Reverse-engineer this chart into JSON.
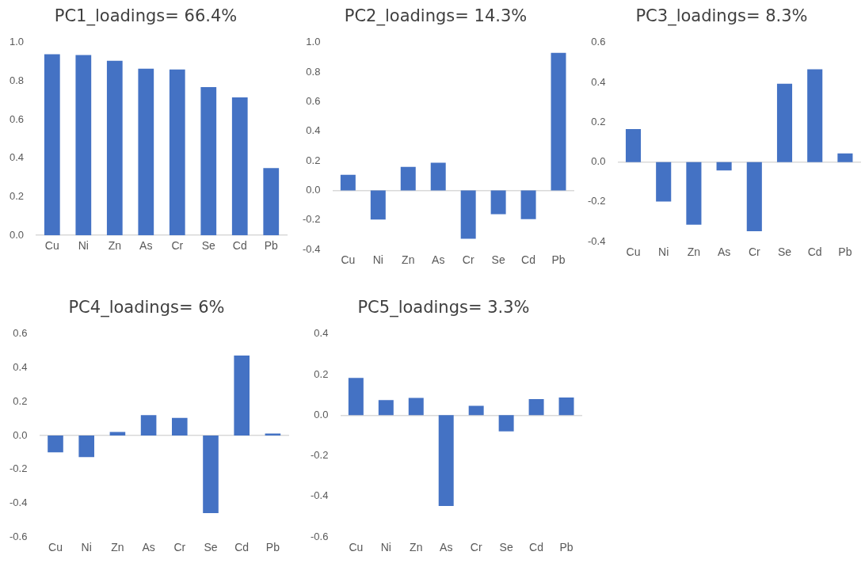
{
  "chart_data": [
    {
      "type": "bar",
      "title": "PC1_loadings= 66.4%",
      "categories": [
        "Cu",
        "Ni",
        "Zn",
        "As",
        "Cr",
        "Se",
        "Cd",
        "Pb"
      ],
      "values": [
        0.94,
        0.936,
        0.906,
        0.865,
        0.861,
        0.769,
        0.716,
        0.349
      ],
      "color": "#4472c4",
      "ylim": [
        0,
        1
      ],
      "yticks": [
        {
          "value": 0,
          "label": "0.0"
        },
        {
          "value": 0.2,
          "label": "0.2"
        },
        {
          "value": 0.4,
          "label": "0.4"
        },
        {
          "value": 0.6,
          "label": "0.6"
        },
        {
          "value": 0.8,
          "label": "0.8"
        },
        {
          "value": 1,
          "label": "1.0"
        }
      ],
      "legend": false
    },
    {
      "type": "bar",
      "title": "PC2_loadings= 14.3%",
      "categories": [
        "Cu",
        "Ni",
        "Zn",
        "As",
        "Cr",
        "Se",
        "Cd",
        "Pb"
      ],
      "values": [
        0.106,
        -0.197,
        0.159,
        0.187,
        -0.327,
        -0.161,
        -0.194,
        0.931
      ],
      "color": "#4472c4",
      "ylim": [
        -0.4,
        1
      ],
      "yticks": [
        {
          "value": -0.4,
          "label": "-0.4"
        },
        {
          "value": -0.2,
          "label": "-0.2"
        },
        {
          "value": 0,
          "label": "0.0"
        },
        {
          "value": 0.2,
          "label": "0.2"
        },
        {
          "value": 0.4,
          "label": "0.4"
        },
        {
          "value": 0.6,
          "label": "0.6"
        },
        {
          "value": 0.8,
          "label": "0.8"
        },
        {
          "value": 1,
          "label": "1.0"
        }
      ],
      "legend": false
    },
    {
      "type": "bar",
      "title": "PC3_loadings= 8.3%",
      "categories": [
        "Cu",
        "Ni",
        "Zn",
        "As",
        "Cr",
        "Se",
        "Cd",
        "Pb"
      ],
      "values": [
        0.166,
        -0.198,
        -0.315,
        -0.042,
        -0.347,
        0.393,
        0.466,
        0.043
      ],
      "color": "#4472c4",
      "ylim": [
        -0.4,
        0.6
      ],
      "yticks": [
        {
          "value": -0.4,
          "label": "-0.4"
        },
        {
          "value": -0.2,
          "label": "-0.2"
        },
        {
          "value": 0,
          "label": "0.0"
        },
        {
          "value": 0.2,
          "label": "0.2"
        },
        {
          "value": 0.4,
          "label": "0.4"
        },
        {
          "value": 0.6,
          "label": "0.6"
        }
      ],
      "legend": false
    },
    {
      "type": "bar",
      "title": "PC4_loadings= 6%",
      "categories": [
        "Cu",
        "Ni",
        "Zn",
        "As",
        "Cr",
        "Se",
        "Cd",
        "Pb"
      ],
      "values": [
        -0.1,
        -0.127,
        0.021,
        0.12,
        0.104,
        -0.459,
        0.473,
        0.012
      ],
      "color": "#4472c4",
      "ylim": [
        -0.6,
        0.6
      ],
      "yticks": [
        {
          "value": -0.6,
          "label": "-0.6"
        },
        {
          "value": -0.4,
          "label": "-0.4"
        },
        {
          "value": -0.2,
          "label": "-0.2"
        },
        {
          "value": 0,
          "label": "0.0"
        },
        {
          "value": 0.2,
          "label": "0.2"
        },
        {
          "value": 0.4,
          "label": "0.4"
        },
        {
          "value": 0.6,
          "label": "0.6"
        }
      ],
      "legend": false
    },
    {
      "type": "bar",
      "title": "PC5_loadings= 3.3%",
      "categories": [
        "Cu",
        "Ni",
        "Zn",
        "As",
        "Cr",
        "Se",
        "Cd",
        "Pb"
      ],
      "values": [
        0.184,
        0.075,
        0.085,
        -0.447,
        0.046,
        -0.08,
        0.079,
        0.087
      ],
      "color": "#4472c4",
      "ylim": [
        -0.6,
        0.4
      ],
      "yticks": [
        {
          "value": -0.6,
          "label": "-0.6"
        },
        {
          "value": -0.4,
          "label": "-0.4"
        },
        {
          "value": -0.2,
          "label": "-0.2"
        },
        {
          "value": 0,
          "label": "0.0"
        },
        {
          "value": 0.2,
          "label": "0.2"
        },
        {
          "value": 0.4,
          "label": "0.4"
        }
      ],
      "legend": false
    }
  ]
}
